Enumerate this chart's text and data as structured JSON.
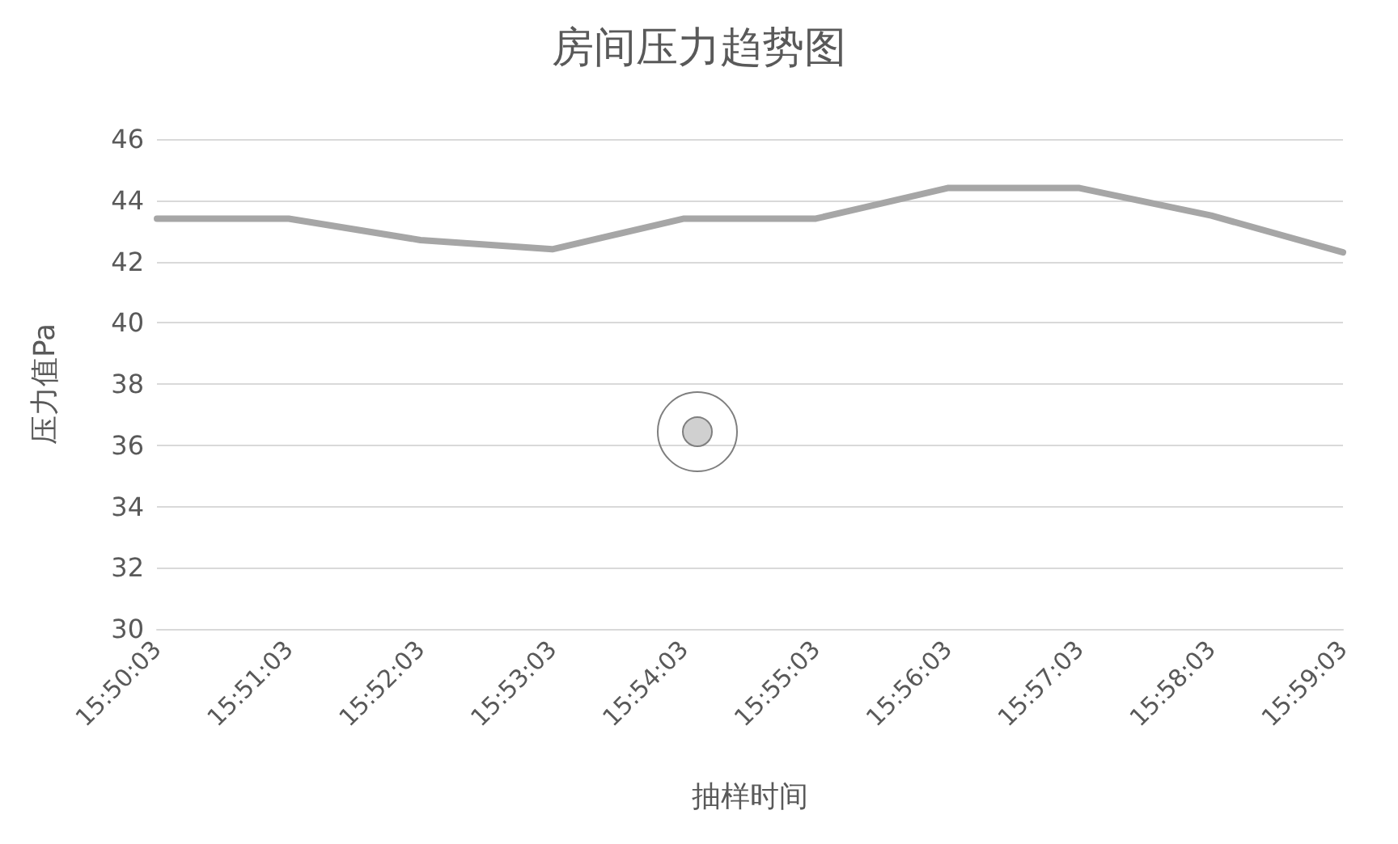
{
  "chart_data": {
    "type": "line",
    "title": "房间压力趋势图",
    "xlabel": "抽样时间",
    "ylabel": "压力值Pa",
    "categories": [
      "15:50:03",
      "15:51:03",
      "15:52:03",
      "15:53:03",
      "15:54:03",
      "15:55:03",
      "15:56:03",
      "15:57:03",
      "15:58:03",
      "15:59:03"
    ],
    "series": [
      {
        "color": "#a6a6a6",
        "values": [
          43.4,
          43.4,
          42.7,
          42.4,
          43.4,
          43.4,
          44.4,
          44.4,
          43.5,
          42.3
        ]
      }
    ],
    "ylim": [
      30,
      46
    ],
    "yticks": [
      30,
      32,
      34,
      36,
      38,
      40,
      42,
      44,
      46
    ],
    "grid": "y",
    "marker": "none",
    "line_style": "solid"
  }
}
